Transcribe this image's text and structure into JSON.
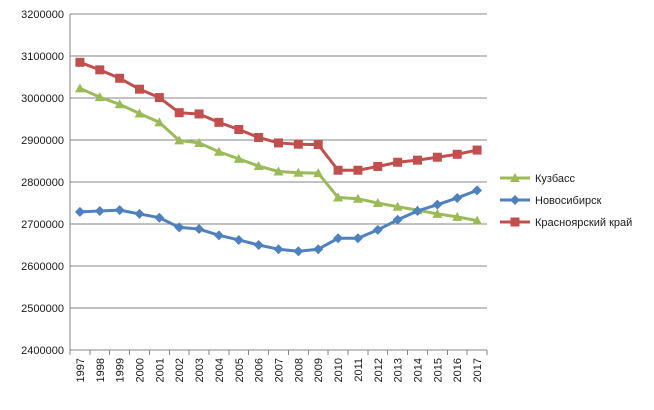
{
  "chart_data": {
    "type": "line",
    "x": [
      "1997",
      "1998",
      "1999",
      "2000",
      "2001",
      "2002",
      "2003",
      "2004",
      "2005",
      "2006",
      "2007",
      "2008",
      "2009",
      "2010",
      "2011",
      "2012",
      "2013",
      "2014",
      "2015",
      "2016",
      "2017"
    ],
    "ylim": [
      2400000,
      3200000
    ],
    "yticks": [
      "2400000",
      "2500000",
      "2600000",
      "2700000",
      "2800000",
      "2900000",
      "3000000",
      "3100000",
      "3200000"
    ],
    "grid": true,
    "legend_position": "right",
    "series": [
      {
        "name": "Кузбасс",
        "color": "#9bbb59",
        "marker": "triangle",
        "values": [
          3023000,
          3002000,
          2985000,
          2963000,
          2942000,
          2899000,
          2893000,
          2872000,
          2855000,
          2838000,
          2825000,
          2822000,
          2821000,
          2763000,
          2760000,
          2750000,
          2741000,
          2733000,
          2724000,
          2717000,
          2708000
        ]
      },
      {
        "name": "Новосибирск",
        "color": "#4f81bd",
        "marker": "diamond",
        "values": [
          2729000,
          2731000,
          2733000,
          2724000,
          2715000,
          2692000,
          2688000,
          2673000,
          2662000,
          2650000,
          2640000,
          2635000,
          2640000,
          2666000,
          2666000,
          2686000,
          2710000,
          2731000,
          2746000,
          2762000,
          2780000
        ]
      },
      {
        "name": "Красноярский край",
        "color": "#c0504d",
        "marker": "square",
        "values": [
          3085000,
          3067000,
          3047000,
          3021000,
          3001000,
          2965000,
          2962000,
          2942000,
          2925000,
          2906000,
          2893000,
          2890000,
          2889000,
          2828000,
          2828000,
          2837000,
          2847000,
          2852000,
          2859000,
          2866000,
          2876000
        ]
      }
    ]
  }
}
